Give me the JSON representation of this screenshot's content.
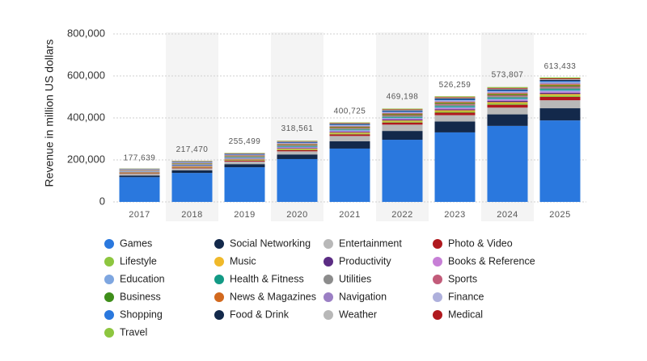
{
  "chart_data": {
    "type": "stacked-bar",
    "y_label": "Revenue in million US dollars",
    "categories": [
      "2017",
      "2018",
      "2019",
      "2020",
      "2021",
      "2022",
      "2023",
      "2024",
      "2025"
    ],
    "ylim": [
      0,
      800000
    ],
    "yticks": [
      0,
      {
        "value": 200000,
        "label": "200,000"
      },
      {
        "value": 400000,
        "label": "400,000"
      },
      {
        "value": 600000,
        "label": "600,000"
      },
      {
        "value": 800000,
        "label": "800,000"
      }
    ],
    "grid": true,
    "totals": {
      "values": [
        177639,
        217470,
        255499,
        318561,
        400725,
        469198,
        526259,
        573807,
        613433
      ],
      "value_labels": [
        "177,639",
        "217,470",
        "255,499",
        "318,561",
        "400,725",
        "469,198",
        "526,259",
        "573,807",
        "613,433"
      ]
    },
    "series": [
      {
        "name": "Games",
        "color": "#2a78de",
        "values": [
          118000,
          138000,
          165000,
          204000,
          254000,
          296000,
          331000,
          362000,
          388000
        ]
      },
      {
        "name": "Social Networking",
        "color": "#13294b",
        "values": [
          8000,
          12000,
          15000,
          22000,
          35000,
          42000,
          52000,
          55000,
          58000
        ]
      },
      {
        "name": "Entertainment",
        "color": "#b8b8b8",
        "values": [
          8000,
          10000,
          12000,
          15000,
          25000,
          30000,
          30000,
          32000,
          38000
        ]
      },
      {
        "name": "Photo & Video",
        "color": "#b0191e",
        "values": [
          3000,
          4000,
          5000,
          6000,
          8000,
          10000,
          12000,
          14000,
          16000
        ]
      },
      {
        "name": "Lifestyle",
        "color": "#8dc63f",
        "values": [
          2000,
          2500,
          2800,
          3400,
          4300,
          5000,
          5800,
          6300,
          7000
        ]
      },
      {
        "name": "Music",
        "color": "#f0b92a",
        "values": [
          1800,
          2400,
          2700,
          3300,
          4100,
          4800,
          5600,
          6000,
          6700
        ]
      },
      {
        "name": "Productivity",
        "color": "#5b2c83",
        "values": [
          1500,
          2100,
          2400,
          3000,
          3800,
          4400,
          5200,
          5600,
          6200
        ]
      },
      {
        "name": "Books & Reference",
        "color": "#c77fd6",
        "values": [
          1400,
          2000,
          2300,
          2800,
          3600,
          4200,
          4900,
          5300,
          5900
        ]
      },
      {
        "name": "Education",
        "color": "#7ea6e0",
        "values": [
          1600,
          2200,
          2500,
          3100,
          3900,
          4500,
          5300,
          5700,
          6300
        ]
      },
      {
        "name": "Health & Fitness",
        "color": "#139a85",
        "values": [
          1500,
          2100,
          2400,
          2900,
          3700,
          4300,
          5100,
          5500,
          6100
        ]
      },
      {
        "name": "Utilities",
        "color": "#8c8c8c",
        "values": [
          1700,
          2300,
          2600,
          3100,
          3900,
          4600,
          5400,
          5800,
          6400
        ]
      },
      {
        "name": "Sports",
        "color": "#c25b7a",
        "values": [
          1200,
          1700,
          2000,
          2400,
          3100,
          3600,
          4300,
          4600,
          5100
        ]
      },
      {
        "name": "Business",
        "color": "#3e8e1a",
        "values": [
          1300,
          1900,
          2200,
          2700,
          3400,
          4000,
          4700,
          5100,
          5600
        ]
      },
      {
        "name": "News & Magazines",
        "color": "#d2691e",
        "values": [
          1200,
          1700,
          2000,
          2500,
          3200,
          3700,
          4400,
          4700,
          5200
        ]
      },
      {
        "name": "Navigation",
        "color": "#9b7fc4",
        "values": [
          1100,
          1600,
          1900,
          2300,
          3000,
          3500,
          4100,
          4400,
          4900
        ]
      },
      {
        "name": "Finance",
        "color": "#aeb0dc",
        "values": [
          1000,
          1500,
          1800,
          2200,
          2900,
          3400,
          4000,
          4300,
          4800
        ]
      },
      {
        "name": "Shopping",
        "color": "#2a78de",
        "values": [
          1200,
          1800,
          2100,
          2600,
          3300,
          3900,
          4600,
          5000,
          5500
        ]
      },
      {
        "name": "Food & Drink",
        "color": "#13294b",
        "values": [
          1100,
          1600,
          1900,
          2400,
          3000,
          3600,
          4200,
          4600,
          5100
        ]
      },
      {
        "name": "Weather",
        "color": "#b8b8b8",
        "values": [
          900,
          1300,
          1500,
          1900,
          2400,
          2800,
          3300,
          3600,
          4000
        ]
      },
      {
        "name": "Medical",
        "color": "#b0191e",
        "values": [
          800,
          1200,
          1400,
          1800,
          2300,
          2700,
          3200,
          3500,
          3900
        ]
      },
      {
        "name": "Travel",
        "color": "#8dc63f",
        "values": [
          1000,
          1400,
          1700,
          2100,
          2700,
          3200,
          3700,
          4000,
          4400
        ]
      }
    ]
  }
}
